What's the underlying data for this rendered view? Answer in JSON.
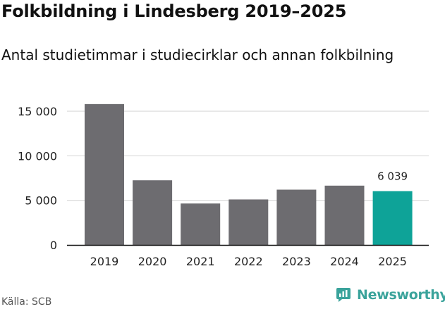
{
  "title": "Folkbildning i Lindesberg 2019–2025",
  "subtitle": "Antal studietimmar i studiecirklar och annan folkbilning",
  "source": "Källa: SCB",
  "brand": "Newsworthy",
  "colors": {
    "bar": "#6d6c70",
    "highlight": "#0ea398",
    "grid": "#d9d9d9",
    "axis": "#111111",
    "brand": "#3aa39b"
  },
  "chart_data": {
    "type": "bar",
    "title": "Folkbildning i Lindesberg 2019–2025",
    "subtitle": "Antal studietimmar i studiecirklar och annan folkbilning",
    "xlabel": "",
    "ylabel": "",
    "categories": [
      "2019",
      "2020",
      "2021",
      "2022",
      "2023",
      "2024",
      "2025"
    ],
    "values": [
      15800,
      7250,
      4650,
      5100,
      6200,
      6650,
      6039
    ],
    "highlight_index": 6,
    "data_labels": [
      {
        "index": 6,
        "text": "6 039"
      }
    ],
    "yticks": [
      {
        "value": 0,
        "label": "0"
      },
      {
        "value": 5000,
        "label": "5 000"
      },
      {
        "value": 10000,
        "label": "10 000"
      },
      {
        "value": 15000,
        "label": "15 000"
      }
    ],
    "ylim": [
      0,
      15000
    ],
    "grid": true
  }
}
